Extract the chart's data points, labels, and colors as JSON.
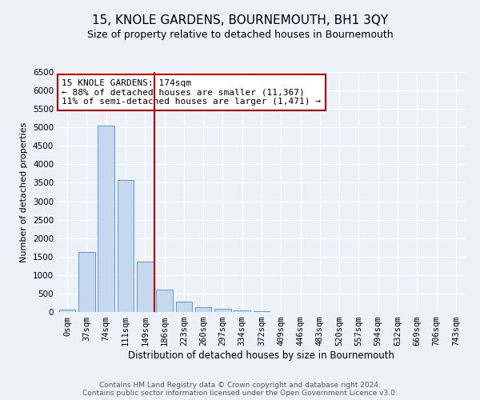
{
  "title": "15, KNOLE GARDENS, BOURNEMOUTH, BH1 3QY",
  "subtitle": "Size of property relative to detached houses in Bournemouth",
  "xlabel": "Distribution of detached houses by size in Bournemouth",
  "ylabel": "Number of detached properties",
  "footnote1": "Contains HM Land Registry data © Crown copyright and database right 2024.",
  "footnote2": "Contains public sector information licensed under the Open Government Licence v3.0.",
  "annotation_line1": "15 KNOLE GARDENS: 174sqm",
  "annotation_line2": "← 88% of detached houses are smaller (11,367)",
  "annotation_line3": "11% of semi-detached houses are larger (1,471) →",
  "bar_color": "#c5d8ed",
  "bar_edge_color": "#5b9bd5",
  "vline_color": "#cc0000",
  "vline_x_index": 5,
  "categories": [
    "0sqm",
    "37sqm",
    "74sqm",
    "111sqm",
    "149sqm",
    "186sqm",
    "223sqm",
    "260sqm",
    "297sqm",
    "334sqm",
    "372sqm",
    "409sqm",
    "446sqm",
    "483sqm",
    "520sqm",
    "557sqm",
    "594sqm",
    "632sqm",
    "669sqm",
    "706sqm",
    "743sqm"
  ],
  "values": [
    75,
    1625,
    5050,
    3575,
    1375,
    600,
    275,
    125,
    90,
    50,
    30,
    10,
    5,
    0,
    0,
    0,
    0,
    0,
    0,
    0,
    0
  ],
  "ylim": [
    0,
    6500
  ],
  "yticks": [
    0,
    500,
    1000,
    1500,
    2000,
    2500,
    3000,
    3500,
    4000,
    4500,
    5000,
    5500,
    6000,
    6500
  ],
  "bg_color": "#edf2f9",
  "plot_bg_color": "#edf2f9",
  "grid_color": "#ffffff",
  "title_fontsize": 11,
  "subtitle_fontsize": 9,
  "xlabel_fontsize": 8.5,
  "ylabel_fontsize": 8,
  "annotation_fontsize": 8,
  "tick_fontsize": 7.5,
  "footnote_fontsize": 6.5
}
